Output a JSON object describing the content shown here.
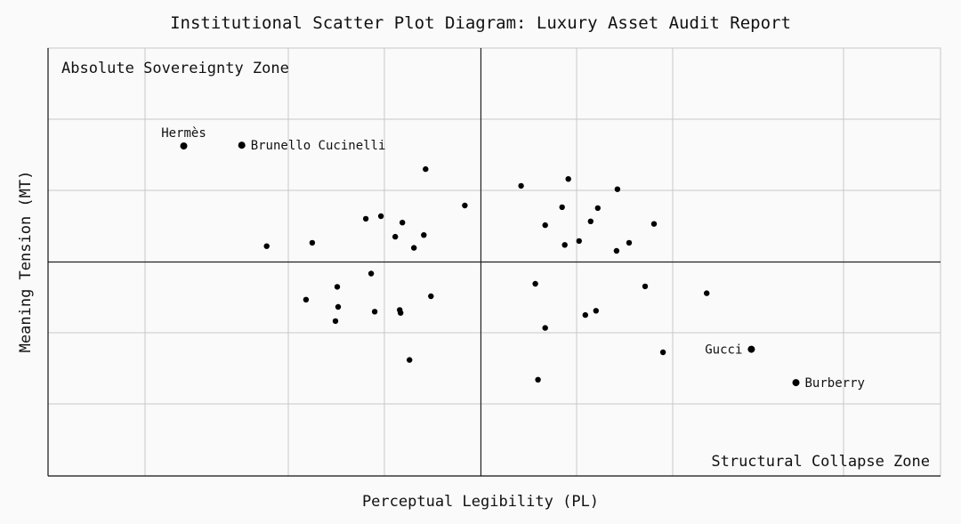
{
  "chart_data": {
    "type": "scatter",
    "title": "Institutional Scatter Plot Diagram: Luxury Asset Audit Report",
    "xlabel": "Perceptual Legibility (PL)",
    "ylabel": "Meaning Tension (MT)",
    "xlim": [
      0,
      100
    ],
    "ylim": [
      0,
      100
    ],
    "grid": true,
    "quadrant_lines": {
      "x": 48.5,
      "y": 50
    },
    "zone_labels": {
      "top_left": "Absolute Sovereignty Zone",
      "bottom_right": "Structural Collapse Zone"
    },
    "points": [
      {
        "x": 15.2,
        "y": 77.1,
        "label": "Hermès"
      },
      {
        "x": 21.7,
        "y": 77.3,
        "label": "Brunello Cucinelli"
      },
      {
        "x": 78.8,
        "y": 29.6,
        "label": "Gucci"
      },
      {
        "x": 83.8,
        "y": 21.8,
        "label": "Burberry"
      },
      {
        "x": 24.5,
        "y": 53.7
      },
      {
        "x": 29.6,
        "y": 54.5
      },
      {
        "x": 35.6,
        "y": 60.1
      },
      {
        "x": 37.3,
        "y": 60.7
      },
      {
        "x": 38.9,
        "y": 55.9
      },
      {
        "x": 39.7,
        "y": 59.2
      },
      {
        "x": 41.0,
        "y": 53.3
      },
      {
        "x": 42.1,
        "y": 56.3
      },
      {
        "x": 42.3,
        "y": 71.7
      },
      {
        "x": 46.7,
        "y": 63.2
      },
      {
        "x": 28.9,
        "y": 41.2
      },
      {
        "x": 32.4,
        "y": 44.2
      },
      {
        "x": 32.5,
        "y": 39.5
      },
      {
        "x": 32.2,
        "y": 36.2
      },
      {
        "x": 36.2,
        "y": 47.3
      },
      {
        "x": 36.6,
        "y": 38.4
      },
      {
        "x": 39.4,
        "y": 38.8
      },
      {
        "x": 39.5,
        "y": 38.1
      },
      {
        "x": 42.9,
        "y": 42.0
      },
      {
        "x": 40.5,
        "y": 27.1
      },
      {
        "x": 53.0,
        "y": 67.8
      },
      {
        "x": 58.3,
        "y": 69.4
      },
      {
        "x": 55.7,
        "y": 58.6
      },
      {
        "x": 57.6,
        "y": 62.8
      },
      {
        "x": 60.8,
        "y": 59.5
      },
      {
        "x": 61.6,
        "y": 62.6
      },
      {
        "x": 63.8,
        "y": 67.0
      },
      {
        "x": 67.9,
        "y": 58.9
      },
      {
        "x": 57.9,
        "y": 54.0
      },
      {
        "x": 59.5,
        "y": 54.9
      },
      {
        "x": 65.1,
        "y": 54.5
      },
      {
        "x": 63.7,
        "y": 52.6
      },
      {
        "x": 54.6,
        "y": 44.9
      },
      {
        "x": 66.9,
        "y": 44.3
      },
      {
        "x": 73.8,
        "y": 42.7
      },
      {
        "x": 60.2,
        "y": 37.6
      },
      {
        "x": 61.4,
        "y": 38.6
      },
      {
        "x": 55.7,
        "y": 34.6
      },
      {
        "x": 68.9,
        "y": 28.9
      },
      {
        "x": 54.9,
        "y": 22.5
      }
    ]
  }
}
